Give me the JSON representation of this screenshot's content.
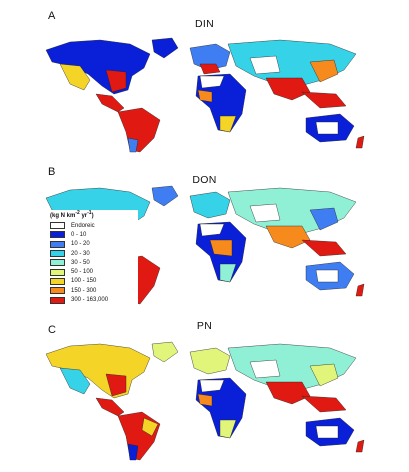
{
  "panels": [
    {
      "letter": "A",
      "title": "DIN"
    },
    {
      "letter": "B",
      "title": "DON"
    },
    {
      "letter": "C",
      "title": "PN"
    }
  ],
  "legend": {
    "title": "(kg N km",
    "title_sup": "-2",
    "title_mid": " yr",
    "title_sup2": "-1",
    "title_end": ")",
    "items": [
      {
        "label": "Endoreic",
        "color": "#ffffff"
      },
      {
        "label": "0 - 10",
        "color": "#0a1fd8"
      },
      {
        "label": "10 - 20",
        "color": "#3f7df2"
      },
      {
        "label": "20 - 30",
        "color": "#36d2e8"
      },
      {
        "label": "30 - 50",
        "color": "#8ff0d6"
      },
      {
        "label": "50 - 100",
        "color": "#e0f57a"
      },
      {
        "label": "100 - 150",
        "color": "#f5d428"
      },
      {
        "label": "150 - 300",
        "color": "#f78a1c"
      },
      {
        "label": "300 - 163,000",
        "color": "#e01a12"
      }
    ]
  },
  "colors": {
    "endoreic": "#ffffff",
    "c1": "#0a1fd8",
    "c2": "#3f7df2",
    "c3": "#36d2e8",
    "c4": "#8ff0d6",
    "c5": "#e0f57a",
    "c6": "#f5d428",
    "c7": "#f78a1c",
    "c8": "#e01a12"
  }
}
